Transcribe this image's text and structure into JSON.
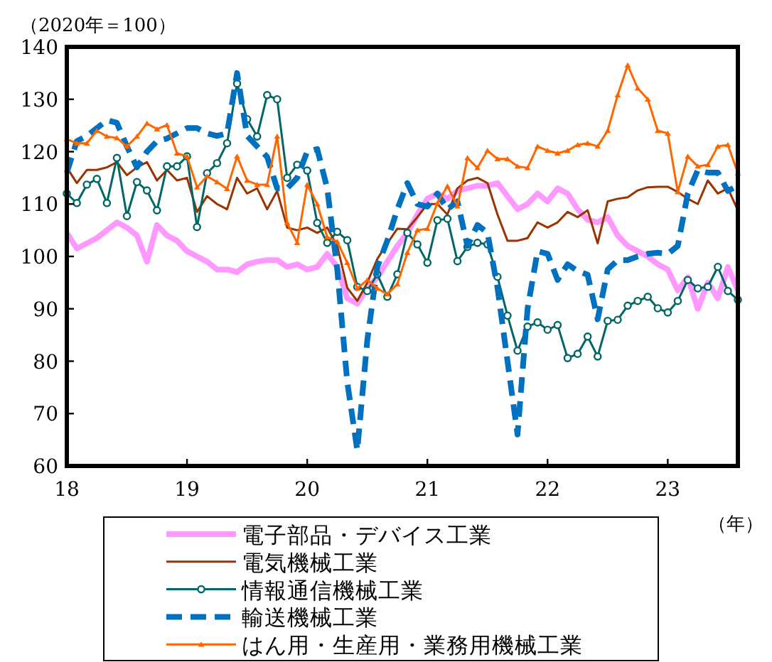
{
  "chart_data": {
    "type": "line",
    "ylabel": "（2020年＝100）",
    "xlabel": "（年）",
    "x": [
      "2018-01",
      "2018-02",
      "2018-03",
      "2018-04",
      "2018-05",
      "2018-06",
      "2018-07",
      "2018-08",
      "2018-09",
      "2018-10",
      "2018-11",
      "2018-12",
      "2019-01",
      "2019-02",
      "2019-03",
      "2019-04",
      "2019-05",
      "2019-06",
      "2019-07",
      "2019-08",
      "2019-09",
      "2019-10",
      "2019-11",
      "2019-12",
      "2020-01",
      "2020-02",
      "2020-03",
      "2020-04",
      "2020-05",
      "2020-06",
      "2020-07",
      "2020-08",
      "2020-09",
      "2020-10",
      "2020-11",
      "2020-12",
      "2021-01",
      "2021-02",
      "2021-03",
      "2021-04",
      "2021-05",
      "2021-06",
      "2021-07",
      "2021-08",
      "2021-09",
      "2021-10",
      "2021-11",
      "2021-12",
      "2022-01",
      "2022-02",
      "2022-03",
      "2022-04",
      "2022-05",
      "2022-06",
      "2022-07",
      "2022-08",
      "2022-09",
      "2022-10",
      "2022-11",
      "2022-12",
      "2023-01",
      "2023-02",
      "2023-03",
      "2023-04",
      "2023-05",
      "2023-06",
      "2023-07",
      "2023-08"
    ],
    "xlim": [
      "2018-01",
      "2023-08"
    ],
    "xticks": [
      {
        "value": "2018-01",
        "label": "18"
      },
      {
        "value": "2019-01",
        "label": "19"
      },
      {
        "value": "2020-01",
        "label": "20"
      },
      {
        "value": "2021-01",
        "label": "21"
      },
      {
        "value": "2022-01",
        "label": "22"
      },
      {
        "value": "2023-01",
        "label": "23"
      }
    ],
    "ylim": [
      60,
      140
    ],
    "yticks": [
      60,
      70,
      80,
      90,
      100,
      110,
      120,
      130,
      140
    ],
    "grid": false,
    "legend": "bottom",
    "series": [
      {
        "name": "電子部品・デバイス工業",
        "color": "#ff99ff",
        "marker": "none",
        "line_style": "solid",
        "values": [
          104.5,
          101.5,
          102.5,
          103.5,
          105,
          106.5,
          105.5,
          104,
          99,
          106,
          104,
          103,
          101,
          100,
          99,
          97.5,
          97.5,
          97,
          98.5,
          99,
          99.3,
          99.3,
          98,
          98.5,
          97.5,
          98,
          100.5,
          98,
          92,
          91,
          94,
          96,
          99,
          102,
          104.5,
          108,
          111,
          112,
          111,
          112.5,
          113,
          113.5,
          113.5,
          114,
          111.5,
          109,
          110,
          112,
          110.5,
          113,
          112,
          109,
          107,
          106.5,
          107.5,
          104,
          102,
          101,
          100,
          98.5,
          97.5,
          93.5,
          96,
          90,
          95,
          92,
          98,
          93.5
        ]
      },
      {
        "name": "電気機械工業",
        "color": "#993300",
        "marker": "none",
        "line_style": "solid",
        "values": [
          117,
          114,
          116.5,
          116.5,
          117,
          118,
          115.5,
          117,
          118,
          114.5,
          116.5,
          114.5,
          115,
          108.5,
          111.5,
          110,
          109,
          115,
          112,
          113,
          109,
          112.5,
          105.5,
          105,
          105.5,
          104.5,
          105.5,
          102,
          94,
          91.5,
          95,
          99.5,
          102.5,
          105.3,
          105.2,
          107.5,
          110,
          110,
          108,
          113,
          114.5,
          115,
          114,
          108,
          103,
          103,
          103.5,
          106.5,
          105.5,
          106.5,
          108.5,
          107.5,
          108.8,
          102.5,
          110.5,
          111,
          111.3,
          112.6,
          113.2,
          113.3,
          113.3,
          112.3,
          111,
          110,
          114.5,
          112,
          113,
          108.8
        ]
      },
      {
        "name": "情報通信機械工業",
        "color": "#006666",
        "marker": "circle",
        "line_style": "solid",
        "values": [
          112,
          110.2,
          113.7,
          114.8,
          110.2,
          118.8,
          107.7,
          114.2,
          112.6,
          108.8,
          117.2,
          117.2,
          119.1,
          105.6,
          115.9,
          117.8,
          121.6,
          133,
          126.2,
          122.9,
          130.8,
          130,
          115,
          117.5,
          116.4,
          106.4,
          102.6,
          104.7,
          103.1,
          94.2,
          93.4,
          96.6,
          92.3,
          96.6,
          104.5,
          102.3,
          98.8,
          106.9,
          107.2,
          99.1,
          101.8,
          102.6,
          102.3,
          96.1,
          88.7,
          82,
          86.6,
          87.4,
          86,
          86.9,
          80.6,
          81.4,
          84.7,
          80.9,
          87.7,
          87.9,
          90.6,
          91.5,
          92.3,
          90.1,
          89.3,
          91.5,
          95.5,
          93.9,
          94.2,
          98,
          93.4,
          91.7
        ]
      },
      {
        "name": "輸送機械工業",
        "color": "#0070c0",
        "marker": "none",
        "line_style": "dashed",
        "values": [
          116,
          122,
          123,
          124.5,
          126,
          125.5,
          121,
          117,
          120,
          122,
          122.5,
          123.5,
          124.5,
          124.5,
          123.5,
          123,
          123.5,
          135,
          123,
          121,
          119,
          113,
          113,
          115,
          120,
          120.5,
          113,
          97.5,
          76,
          63,
          84,
          98,
          103,
          109,
          114,
          110,
          109.5,
          112,
          109,
          110.5,
          102,
          106,
          104.5,
          94,
          80,
          66,
          90,
          101,
          100.5,
          95.5,
          98.5,
          97.2,
          96.5,
          88,
          97.5,
          99.3,
          99.3,
          100,
          100.5,
          100.7,
          100.5,
          102,
          112,
          116.5,
          116,
          116,
          112.5,
          113.5
        ]
      },
      {
        "name": "はん用・生産用・業務用機械工業",
        "color": "#ff6600",
        "marker": "triangle",
        "line_style": "solid",
        "values": [
          122.4,
          121.6,
          121.6,
          124,
          122.9,
          122.6,
          121,
          122.9,
          125.4,
          124.3,
          125.1,
          119.7,
          119.1,
          113.2,
          115.3,
          114.2,
          112.9,
          119.1,
          114.5,
          113.7,
          113.7,
          122.9,
          106.4,
          102.6,
          113.7,
          110,
          103.7,
          102.8,
          98.8,
          93.9,
          95.5,
          93.9,
          92.8,
          94.7,
          100.7,
          105,
          105.3,
          110.2,
          113.4,
          109.6,
          118.8,
          116.9,
          120.2,
          118.6,
          118.6,
          117.2,
          116.9,
          121,
          120.2,
          119.7,
          120.2,
          121.3,
          121.6,
          121,
          124,
          130.8,
          136.5,
          132.1,
          130,
          124,
          123.5,
          112.3,
          119.1,
          117.2,
          117.5,
          121,
          121.3,
          115.9
        ]
      }
    ]
  }
}
